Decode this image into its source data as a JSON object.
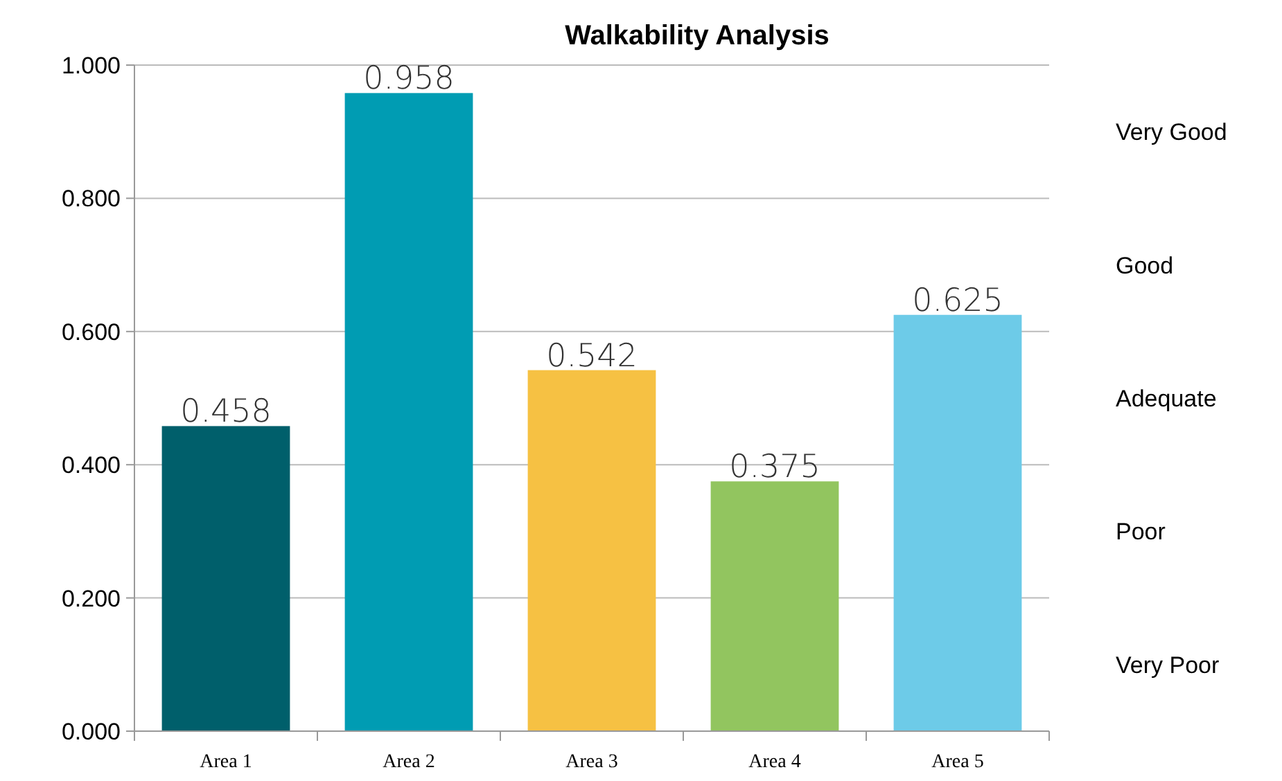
{
  "chart_data": {
    "type": "bar",
    "title": "Walkability Analysis",
    "categories": [
      "Area 1",
      "Area 2",
      "Area 3",
      "Area 4",
      "Area 5"
    ],
    "values": [
      0.458,
      0.958,
      0.542,
      0.375,
      0.625
    ],
    "colors": [
      "#005f6b",
      "#009cb3",
      "#f6c143",
      "#92c55f",
      "#6dcbe8"
    ],
    "ylim": [
      0,
      1
    ],
    "yticks": [
      {
        "value": 0,
        "label": "0.000"
      },
      {
        "value": 0.2,
        "label": "0.200"
      },
      {
        "value": 0.4,
        "label": "0.400"
      },
      {
        "value": 0.6,
        "label": "0.600"
      },
      {
        "value": 0.8,
        "label": "0.800"
      },
      {
        "value": 1,
        "label": "1.000"
      }
    ],
    "grid": "y",
    "data_labels": true,
    "annotations": [
      "Very Good",
      "Good",
      "Adequate",
      "Poor",
      "Very Poor"
    ]
  }
}
